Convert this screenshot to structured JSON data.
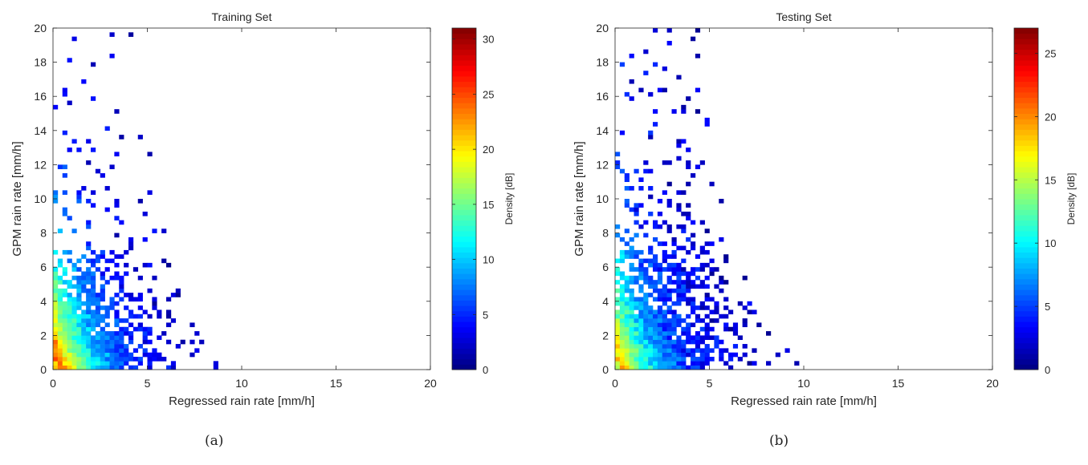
{
  "chart_data": [
    {
      "type": "heatmap",
      "title": "Training Set",
      "xlabel": "Regressed rain rate [mm/h]",
      "ylabel": "GPM rain rate [mm/h]",
      "xlim": [
        0,
        20
      ],
      "ylim": [
        0,
        20
      ],
      "x_ticks": [
        0,
        5,
        10,
        15,
        20
      ],
      "y_ticks": [
        0,
        2,
        4,
        6,
        8,
        10,
        12,
        14,
        16,
        18,
        20
      ],
      "colorbar": {
        "label": "Density [dB]",
        "range": [
          0,
          31
        ],
        "ticks": [
          0,
          5,
          10,
          15,
          20,
          25,
          30
        ],
        "colormap": "jet"
      },
      "bin_size": 0.25,
      "density_model": {
        "peak_db": 27,
        "x_extent": 10,
        "y_extent": 20,
        "sparsity_start": 1.8
      },
      "caption": "(a)"
    },
    {
      "type": "heatmap",
      "title": "Testing Set",
      "xlabel": "Regressed rain rate [mm/h]",
      "ylabel": "GPM rain rate [mm/h]",
      "xlim": [
        0,
        20
      ],
      "ylim": [
        0,
        20
      ],
      "x_ticks": [
        0,
        5,
        10,
        15,
        20
      ],
      "y_ticks": [
        0,
        2,
        4,
        6,
        8,
        10,
        12,
        14,
        16,
        18,
        20
      ],
      "colorbar": {
        "label": "Density [dB]",
        "range": [
          0,
          27
        ],
        "ticks": [
          0,
          5,
          10,
          15,
          20,
          25
        ],
        "colormap": "jet"
      },
      "bin_size": 0.25,
      "density_model": {
        "peak_db": 20,
        "x_extent": 10.2,
        "y_extent": 20,
        "sparsity_start": 1.2
      },
      "caption": "(b)"
    }
  ]
}
